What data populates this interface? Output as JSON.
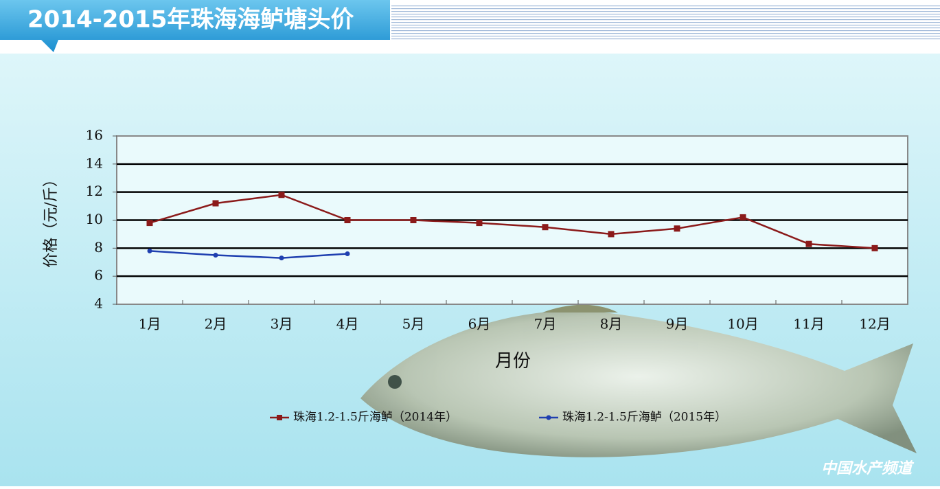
{
  "header": {
    "title": "2014-2015年珠海海鲈塘头价"
  },
  "chart_data": {
    "type": "line",
    "y_label": "价格（元/斤）",
    "x_label": "月份",
    "categories": [
      "1月",
      "2月",
      "3月",
      "4月",
      "5月",
      "6月",
      "7月",
      "8月",
      "9月",
      "10月",
      "11月",
      "12月"
    ],
    "series": [
      {
        "name": "珠海1.2-1.5斤海鲈（2014年）",
        "color": "#8b1a1a",
        "values": [
          9.8,
          11.2,
          11.8,
          10.0,
          10.0,
          9.8,
          9.5,
          9.0,
          9.4,
          10.2,
          8.3,
          8.0
        ]
      },
      {
        "name": "珠海1.2-1.5斤海鲈（2015年）",
        "color": "#1f3fb0",
        "values": [
          7.8,
          7.5,
          7.3,
          7.6,
          null,
          null,
          null,
          null,
          null,
          null,
          null,
          null
        ]
      }
    ],
    "ylim": [
      4,
      16
    ],
    "yticks": [
      4,
      6,
      8,
      10,
      12,
      14,
      16
    ],
    "grid": true
  },
  "watermark": "中国水产频道"
}
